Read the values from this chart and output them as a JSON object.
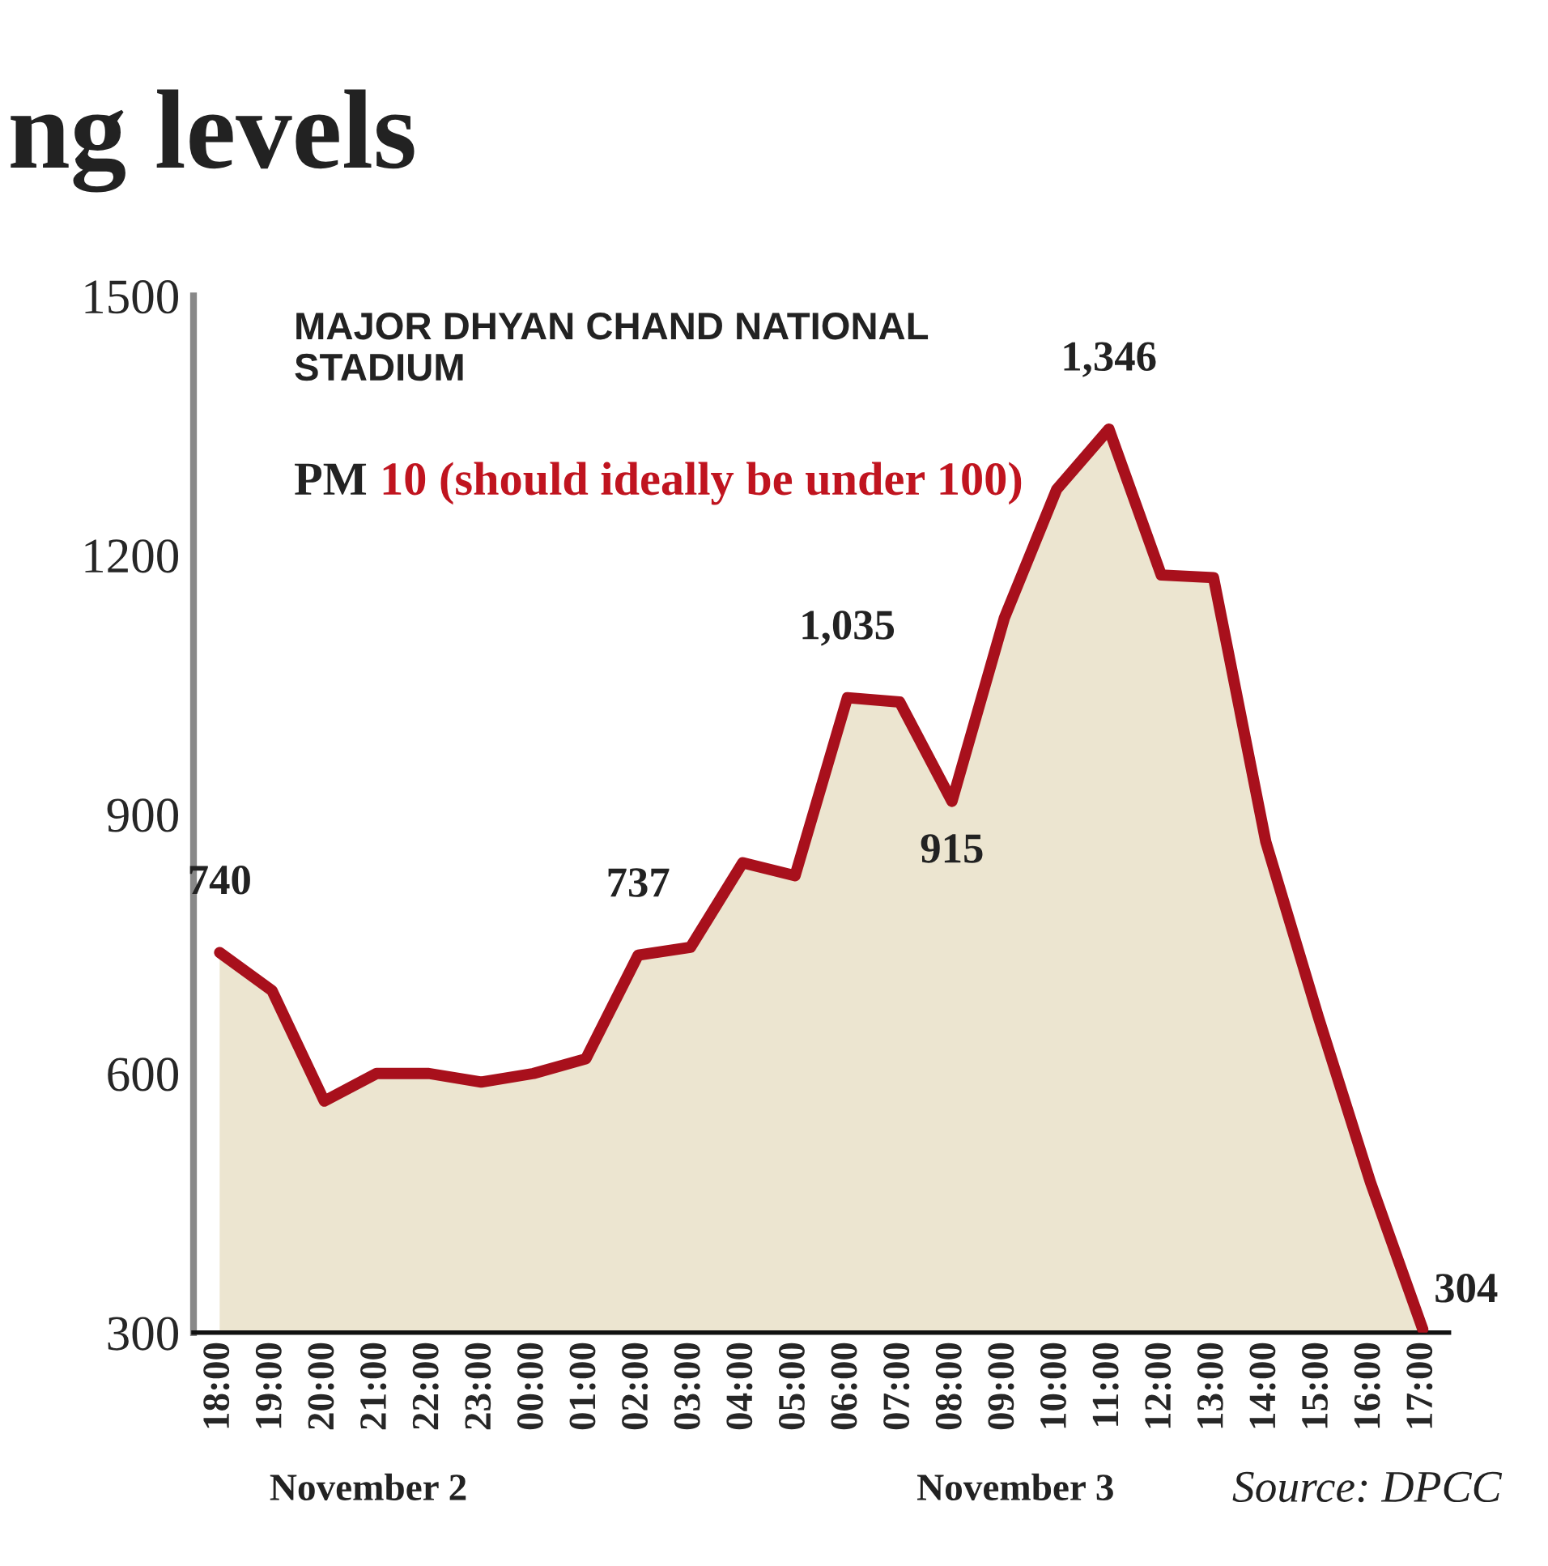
{
  "chart_data": {
    "type": "area",
    "title": "ng levels",
    "subtitle": "MAJOR DHYAN CHAND NATIONAL STADIUM",
    "annotations": [
      "PM",
      "10 (should ideally be under 100)",
      "November 2",
      "November 3",
      "Source: DPCC"
    ],
    "categories": [
      "18:00",
      "19:00",
      "20:00",
      "21:00",
      "22:00",
      "23:00",
      "00:00",
      "01:00",
      "02:00",
      "03:00",
      "04:00",
      "05:00",
      "06:00",
      "07:00",
      "08:00",
      "09:00",
      "10:00",
      "11:00",
      "12:00",
      "13:00",
      "14:00",
      "15:00",
      "16:00",
      "17:00"
    ],
    "series": [
      {
        "color": "#a8101c",
        "values": [
          740,
          696,
          568,
          600,
          600,
          590,
          600,
          617,
          737,
          746,
          844,
          829,
          1035,
          1030,
          915,
          1127,
          1276,
          1346,
          1177,
          1174,
          868,
          666,
          474,
          304
        ],
        "value_labels": [
          "740",
          null,
          null,
          null,
          null,
          null,
          null,
          null,
          "737",
          null,
          null,
          null,
          "1,035",
          null,
          "915",
          null,
          null,
          "1,346",
          null,
          null,
          null,
          null,
          null,
          "304"
        ]
      }
    ],
    "ylim": [
      300,
      1500
    ],
    "yticks": [
      300,
      600,
      900,
      1200,
      1500
    ],
    "grid": false,
    "legend": false
  }
}
